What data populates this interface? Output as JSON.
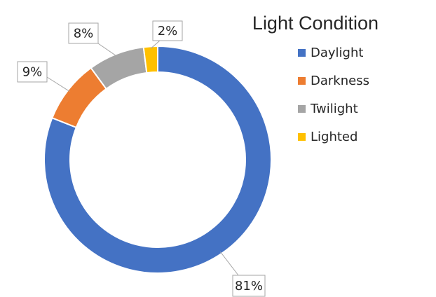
{
  "chart_data": {
    "type": "donut",
    "title": "Light Condition",
    "categories": [
      "Daylight",
      "Darkness",
      "Twilight",
      "Lighted"
    ],
    "values": [
      81,
      9,
      8,
      2
    ],
    "value_labels": [
      "81%",
      "9%",
      "8%",
      "2%"
    ],
    "colors": [
      "#4472c4",
      "#ed7d31",
      "#a5a5a5",
      "#ffc000"
    ],
    "legend": "right"
  }
}
